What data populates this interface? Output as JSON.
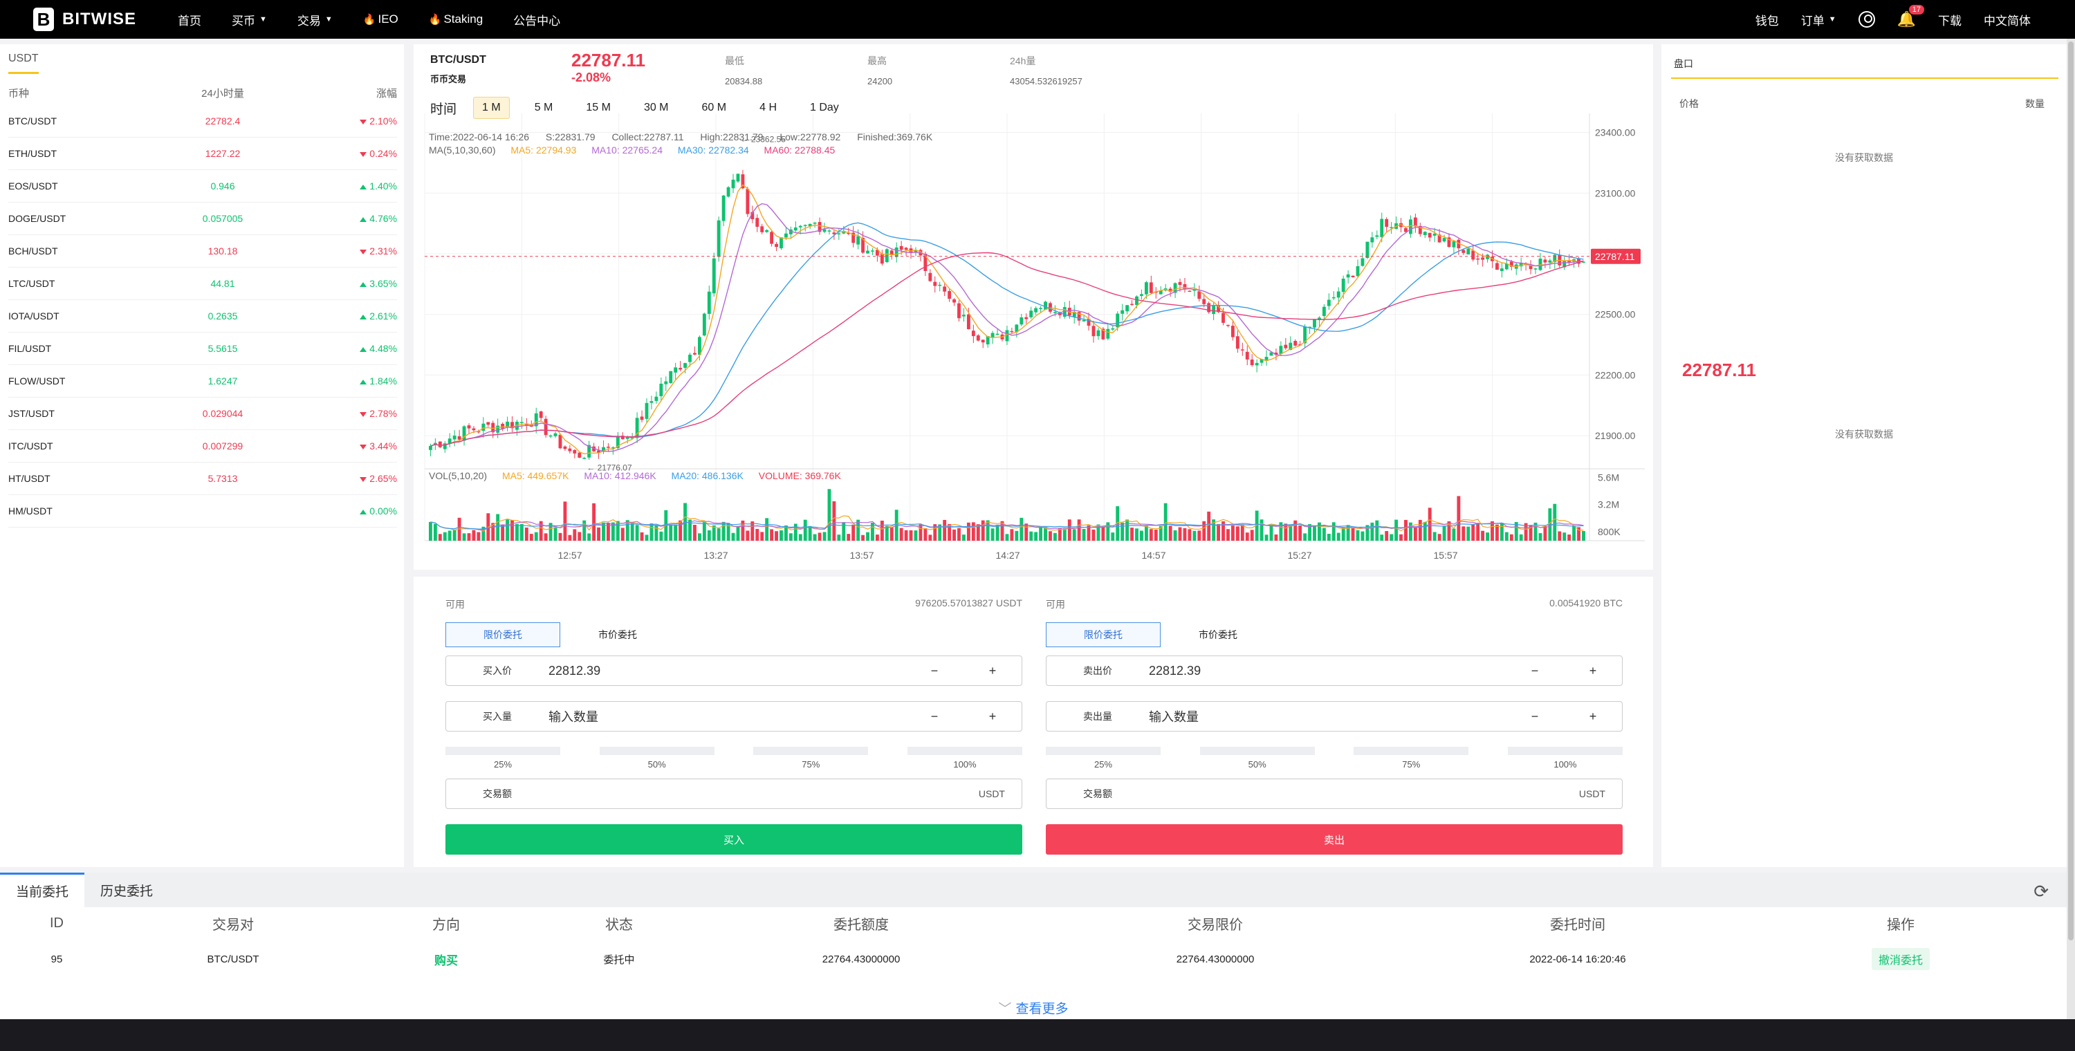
{
  "nav": {
    "logo_mark": "B",
    "logo_text": "BITWISE",
    "items": [
      {
        "label": "首页",
        "caret": false,
        "flame": false
      },
      {
        "label": "买币",
        "caret": true,
        "flame": false
      },
      {
        "label": "交易",
        "caret": true,
        "flame": false
      },
      {
        "label": "IEO",
        "caret": false,
        "flame": true
      },
      {
        "label": "Staking",
        "caret": false,
        "flame": true
      },
      {
        "label": "公告中心",
        "caret": false,
        "flame": false
      }
    ],
    "wallet": "钱包",
    "orders": "订单",
    "notification_count": "17",
    "download": "下载",
    "language": "中文简体"
  },
  "market": {
    "tab": "USDT",
    "headers": {
      "pair": "币种",
      "volume": "24小时量",
      "change": "涨幅"
    },
    "rows": [
      {
        "pair": "BTC/USDT",
        "volume": "22782.4",
        "change": "2.10%",
        "dir": "down"
      },
      {
        "pair": "ETH/USDT",
        "volume": "1227.22",
        "change": "0.24%",
        "dir": "down"
      },
      {
        "pair": "EOS/USDT",
        "volume": "0.946",
        "change": "1.40%",
        "dir": "up"
      },
      {
        "pair": "DOGE/USDT",
        "volume": "0.057005",
        "change": "4.76%",
        "dir": "up"
      },
      {
        "pair": "BCH/USDT",
        "volume": "130.18",
        "change": "2.31%",
        "dir": "down"
      },
      {
        "pair": "LTC/USDT",
        "volume": "44.81",
        "change": "3.65%",
        "dir": "up"
      },
      {
        "pair": "IOTA/USDT",
        "volume": "0.2635",
        "change": "2.61%",
        "dir": "up"
      },
      {
        "pair": "FIL/USDT",
        "volume": "5.5615",
        "change": "4.48%",
        "dir": "up"
      },
      {
        "pair": "FLOW/USDT",
        "volume": "1.6247",
        "change": "1.84%",
        "dir": "up"
      },
      {
        "pair": "JST/USDT",
        "volume": "0.029044",
        "change": "2.78%",
        "dir": "down"
      },
      {
        "pair": "ITC/USDT",
        "volume": "0.007299",
        "change": "3.44%",
        "dir": "down"
      },
      {
        "pair": "HT/USDT",
        "volume": "5.7313",
        "change": "2.65%",
        "dir": "down"
      },
      {
        "pair": "HM/USDT",
        "volume": "",
        "change": "0.00%",
        "dir": "up"
      }
    ]
  },
  "ticker": {
    "pair": "BTC/USDT",
    "sub": "币币交易",
    "price": "22787.11",
    "change": "-2.08%",
    "low_label": "最低",
    "low": "20834.88",
    "high_label": "最高",
    "high": "24200",
    "vol_label": "24h量",
    "vol": "43054.532619257"
  },
  "intervals": {
    "label": "时间",
    "items": [
      "1 M",
      "5 M",
      "15 M",
      "30 M",
      "60 M",
      "4 H",
      "1 Day"
    ],
    "active_index": 0
  },
  "chart_info": {
    "time": "Time:2022-06-14 16:26",
    "open": "S:22831.79",
    "collect": "Collect:22787.11",
    "high": "High:22831.79",
    "low": "Low:22778.92",
    "finished": "Finished:369.76K",
    "ma_title": "MA(5,10,30,60)",
    "ma5": "MA5: 22794.93",
    "ma10": "MA10: 22765.24",
    "ma30": "MA30: 22782.34",
    "ma60": "MA60: 22788.45",
    "vol_title": "VOL(5,10,20)",
    "vma5": "MA5: 449.657K",
    "vma10": "MA10: 412.946K",
    "vma20": "MA20: 486.136K",
    "volume": "VOLUME: 369.76K"
  },
  "chart_data": {
    "type": "candlestick",
    "price_ticks": [
      23400,
      23100,
      22800,
      22500,
      22200,
      21900
    ],
    "price_tick_labels": [
      "23400.00",
      "23100.00",
      "22800.00",
      "22500.00",
      "22200.00",
      "21900.00"
    ],
    "current_price_label": "22787.11",
    "max_label": "23362.55",
    "min_label": "21776.07",
    "volume_ticks": [
      "5.6M",
      "3.2M",
      "800K"
    ],
    "time_labels": [
      "12:57",
      "13:27",
      "13:57",
      "14:27",
      "14:57",
      "15:27",
      "15:57"
    ],
    "ylim": [
      21750,
      23460
    ],
    "volume_max": 6000000,
    "anchors": [
      [
        0,
        21850
      ],
      [
        8,
        21930
      ],
      [
        14,
        21950
      ],
      [
        22,
        21980
      ],
      [
        26,
        21880
      ],
      [
        30,
        21800
      ],
      [
        36,
        21840
      ],
      [
        42,
        21920
      ],
      [
        48,
        22150
      ],
      [
        55,
        22330
      ],
      [
        58,
        22600
      ],
      [
        61,
        23100
      ],
      [
        64,
        23200
      ],
      [
        66,
        23000
      ],
      [
        72,
        22850
      ],
      [
        80,
        22950
      ],
      [
        86,
        22900
      ],
      [
        94,
        22780
      ],
      [
        100,
        22830
      ],
      [
        110,
        22500
      ],
      [
        114,
        22400
      ],
      [
        118,
        22380
      ],
      [
        126,
        22550
      ],
      [
        134,
        22520
      ],
      [
        140,
        22380
      ],
      [
        148,
        22630
      ],
      [
        156,
        22650
      ],
      [
        164,
        22500
      ],
      [
        170,
        22250
      ],
      [
        174,
        22270
      ],
      [
        180,
        22350
      ],
      [
        186,
        22520
      ],
      [
        194,
        22780
      ],
      [
        198,
        22960
      ],
      [
        206,
        22930
      ],
      [
        214,
        22820
      ],
      [
        222,
        22750
      ],
      [
        232,
        22760
      ],
      [
        240,
        22787
      ]
    ],
    "n_candles": 241
  },
  "trade": {
    "buy": {
      "avail_label": "可用",
      "avail_value": "976205.57013827 USDT",
      "tab_limit": "限价委托",
      "tab_market": "市价委托",
      "price_label": "买入价",
      "price_value": "22812.39",
      "qty_label": "买入量",
      "qty_placeholder": "输入数量",
      "minus": "−",
      "plus": "+",
      "pcts": [
        "25%",
        "50%",
        "75%",
        "100%"
      ],
      "amount_label": "交易额",
      "amount_unit": "USDT",
      "button": "买入"
    },
    "sell": {
      "avail_label": "可用",
      "avail_value": "0.00541920 BTC",
      "tab_limit": "限价委托",
      "tab_market": "市价委托",
      "price_label": "卖出价",
      "price_value": "22812.39",
      "qty_label": "卖出量",
      "qty_placeholder": "输入数量",
      "minus": "−",
      "plus": "+",
      "pcts": [
        "25%",
        "50%",
        "75%",
        "100%"
      ],
      "amount_label": "交易额",
      "amount_unit": "USDT",
      "button": "卖出"
    }
  },
  "book": {
    "title": "盘口",
    "price_header": "价格",
    "qty_header": "数量",
    "no_data": "没有获取数据",
    "last_price": "22787.11"
  },
  "orders": {
    "tab_current": "当前委托",
    "tab_history": "历史委托",
    "headers": [
      "ID",
      "交易对",
      "方向",
      "状态",
      "委托额度",
      "交易限价",
      "委托时间",
      "操作"
    ],
    "row": {
      "id": "95",
      "pair": "BTC/USDT",
      "side": "购买",
      "status": "委托中",
      "amount": "22764.43000000",
      "limit": "22764.43000000",
      "time": "2022-06-14 16:20:46",
      "action": "撤消委托"
    },
    "more": "查看更多"
  },
  "colors": {
    "up": "#0ec26f",
    "down": "#f03a50",
    "ma5": "#f5a623",
    "ma10": "#b468d6",
    "ma30": "#3a9ee6",
    "ma60": "#e83e7a",
    "accent": "#f5c518"
  }
}
